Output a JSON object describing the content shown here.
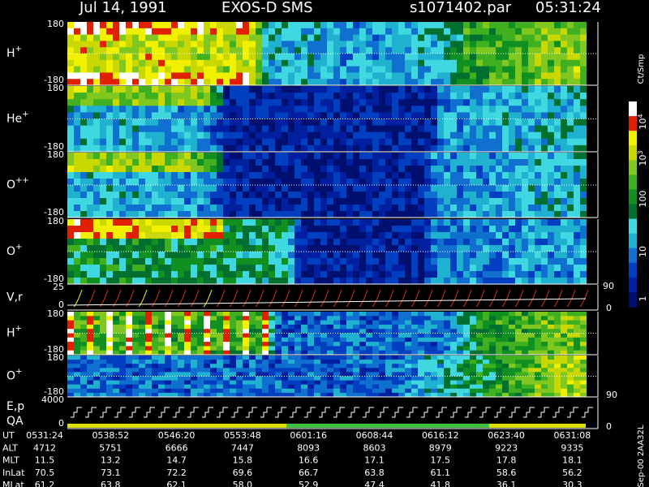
{
  "header": {
    "date": "Jul 14, 1991",
    "instrument": "EXOS-D SMS",
    "file": "s1071402.par",
    "time": "05:31:24"
  },
  "panels": [
    {
      "label": "H",
      "sup": "+",
      "top": "180",
      "bottom": "-180"
    },
    {
      "label": "He",
      "sup": "+",
      "top": "180",
      "bottom": "-180"
    },
    {
      "label": "O",
      "sup": "++",
      "top": "180",
      "bottom": "-180"
    },
    {
      "label": "O",
      "sup": "+",
      "top": "180",
      "bottom": "-180"
    },
    {
      "label": "V,r",
      "top": "25",
      "bottom": "0",
      "right_top": "90",
      "right_bottom": "0"
    },
    {
      "label": "H",
      "sup": "+",
      "top": "180",
      "bottom": "-180"
    },
    {
      "label": "O",
      "sup": "+",
      "top": "180",
      "bottom": "-180",
      "right_bottom": "90"
    },
    {
      "label": "E,p",
      "label2": "QA",
      "top": "4000",
      "bottom": "0",
      "right_bottom": "0"
    }
  ],
  "colorbar": {
    "title": "Ct/Smp",
    "ticks": [
      {
        "base": "10",
        "sup": "4"
      },
      {
        "base": "10",
        "sup": "3"
      },
      {
        "base": "100"
      },
      {
        "base": "10"
      },
      {
        "base": "1"
      }
    ]
  },
  "footer": {
    "rows": [
      {
        "label": "UT",
        "values": [
          "0531:24",
          "0538:52",
          "0546:20",
          "0553:48",
          "0601:16",
          "0608:44",
          "0616:12",
          "0623:40",
          "0631:08"
        ]
      },
      {
        "label": "ALT",
        "values": [
          "4712",
          "5751",
          "6666",
          "7447",
          "8093",
          "8603",
          "8979",
          "9223",
          "9335"
        ]
      },
      {
        "label": "MLT",
        "values": [
          "11.5",
          "13.2",
          "14.7",
          "15.8",
          "16.6",
          "17.1",
          "17.5",
          "17.8",
          "18.1"
        ]
      },
      {
        "label": "InLat",
        "values": [
          "70.5",
          "73.1",
          "72.2",
          "69.6",
          "66.7",
          "63.8",
          "61.1",
          "58.6",
          "56.2"
        ]
      },
      {
        "label": "MLat",
        "values": [
          "61.2",
          "63.8",
          "62.1",
          "58.0",
          "52.9",
          "47.4",
          "41.8",
          "36.1",
          "30.3"
        ]
      }
    ]
  },
  "side_note": "Sep-00 2AA32L"
}
